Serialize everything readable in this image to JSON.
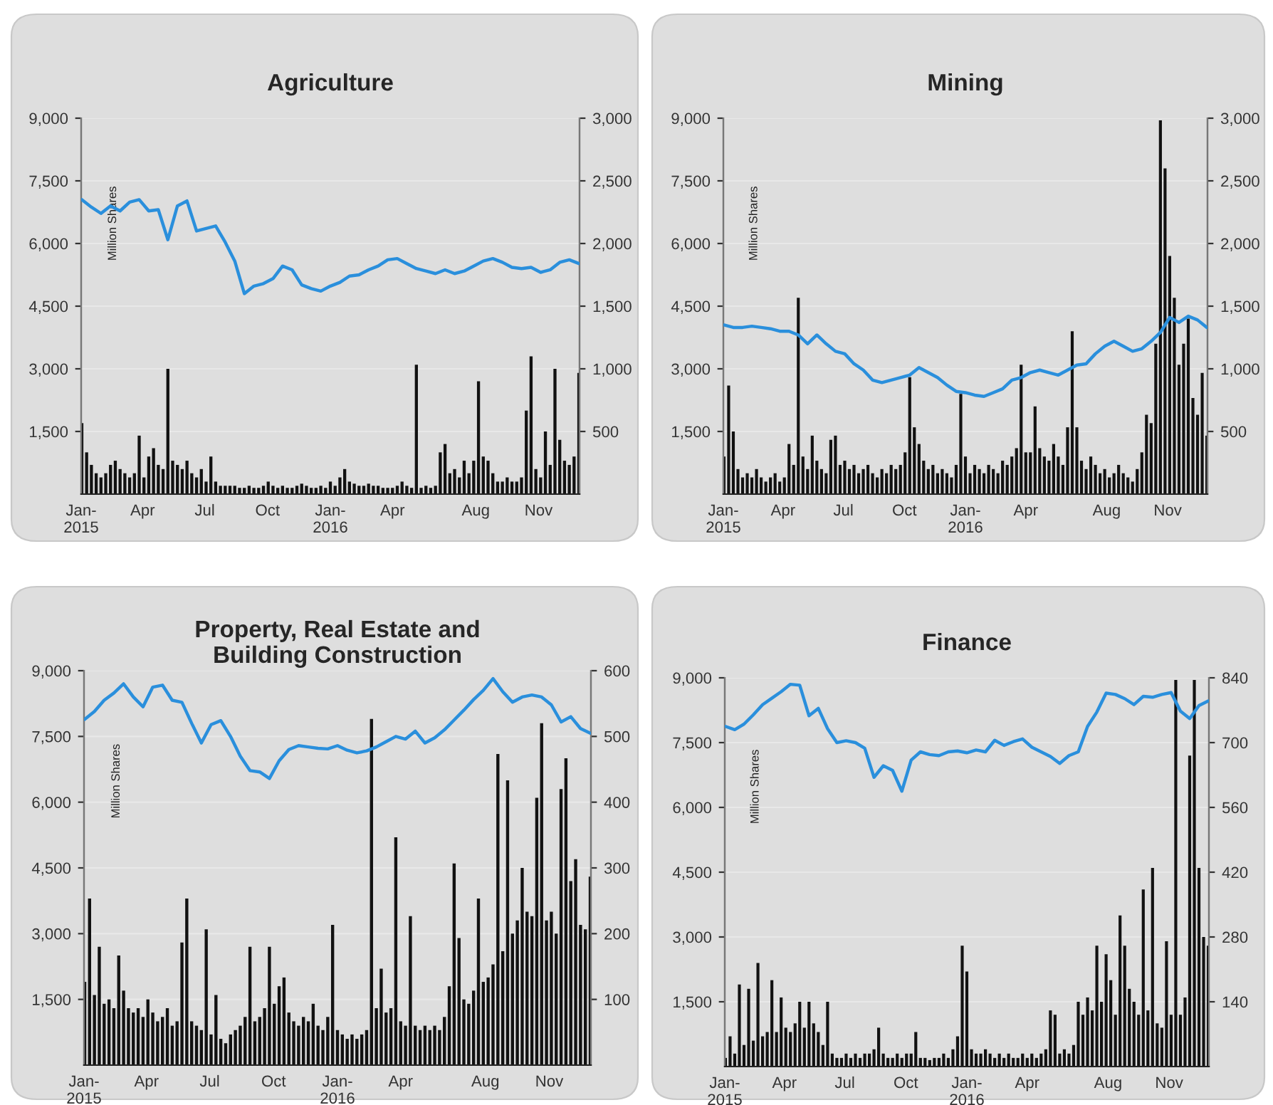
{
  "chart_data": [
    {
      "type": "bar",
      "title": "Agriculture",
      "ylabel": "Million Shares",
      "grid": "y",
      "xlim": [
        "2015-01-01",
        "2016-12-31"
      ],
      "xticks": [
        {
          "value": "2015-01-01",
          "label": "Jan-\n2015"
        },
        {
          "value": "2015-04-01",
          "label": "Apr"
        },
        {
          "value": "2015-07-01",
          "label": "Jul"
        },
        {
          "value": "2015-10-01",
          "label": "Oct"
        },
        {
          "value": "2016-01-01",
          "label": "Jan-\n2016"
        },
        {
          "value": "2016-04-01",
          "label": "Apr"
        },
        {
          "value": "2016-08-01",
          "label": "Aug"
        },
        {
          "value": "2016-11-01",
          "label": "Nov"
        }
      ],
      "ylim": [
        0,
        9000
      ],
      "yticks": [
        {
          "value": 1500,
          "label": "1,500"
        },
        {
          "value": 3000,
          "label": "3,000"
        },
        {
          "value": 4500,
          "label": "4,500"
        },
        {
          "value": 6000,
          "label": "6,000"
        },
        {
          "value": 7500,
          "label": "7,500"
        },
        {
          "value": 9000,
          "label": "9,000"
        }
      ],
      "y2lim": [
        0,
        3000
      ],
      "y2ticks": [
        500,
        {
          "value": 1000,
          "label": "1,000"
        },
        {
          "value": 1500,
          "label": "1,500"
        },
        {
          "value": 2000,
          "label": "2,000"
        },
        {
          "value": 2500,
          "label": "2,500"
        },
        {
          "value": 3000,
          "label": "3,000"
        }
      ],
      "x": [
        "2015-01-02",
        "2015-01-09",
        "2015-01-16",
        "2015-01-23",
        "2015-01-30",
        "2015-02-06",
        "2015-02-13",
        "2015-02-20",
        "2015-02-27",
        "2015-03-06",
        "2015-03-13",
        "2015-03-20",
        "2015-03-27",
        "2015-04-03",
        "2015-04-10",
        "2015-04-17",
        "2015-04-24",
        "2015-05-01",
        "2015-05-08",
        "2015-05-15",
        "2015-05-22",
        "2015-05-29",
        "2015-06-05",
        "2015-06-12",
        "2015-06-19",
        "2015-06-26",
        "2015-07-03",
        "2015-07-10",
        "2015-07-17",
        "2015-07-24",
        "2015-07-31",
        "2015-08-07",
        "2015-08-14",
        "2015-08-21",
        "2015-08-28",
        "2015-09-04",
        "2015-09-11",
        "2015-09-18",
        "2015-09-25",
        "2015-10-02",
        "2015-10-09",
        "2015-10-16",
        "2015-10-23",
        "2015-10-30",
        "2015-11-06",
        "2015-11-13",
        "2015-11-20",
        "2015-11-27",
        "2015-12-04",
        "2015-12-11",
        "2015-12-18",
        "2015-12-25",
        "2016-01-01",
        "2016-01-08",
        "2016-01-15",
        "2016-01-22",
        "2016-01-29",
        "2016-02-05",
        "2016-02-12",
        "2016-02-19",
        "2016-02-26",
        "2016-03-04",
        "2016-03-11",
        "2016-03-18",
        "2016-03-25",
        "2016-04-01",
        "2016-04-08",
        "2016-04-15",
        "2016-04-22",
        "2016-04-29",
        "2016-05-06",
        "2016-05-13",
        "2016-05-20",
        "2016-05-27",
        "2016-06-03",
        "2016-06-10",
        "2016-06-17",
        "2016-06-24",
        "2016-07-01",
        "2016-07-08",
        "2016-07-15",
        "2016-07-22",
        "2016-07-29",
        "2016-08-05",
        "2016-08-12",
        "2016-08-19",
        "2016-08-26",
        "2016-09-02",
        "2016-09-09",
        "2016-09-16",
        "2016-09-23",
        "2016-09-30",
        "2016-10-07",
        "2016-10-14",
        "2016-10-21",
        "2016-10-28",
        "2016-11-04",
        "2016-11-11",
        "2016-11-18",
        "2016-11-25",
        "2016-12-02",
        "2016-12-09",
        "2016-12-16",
        "2016-12-23",
        "2016-12-30"
      ],
      "series": [
        {
          "color": "#111111",
          "values": [
            1700,
            1000,
            700,
            500,
            400,
            500,
            700,
            800,
            600,
            500,
            400,
            500,
            1400,
            400,
            900,
            1100,
            700,
            600,
            3000,
            800,
            700,
            600,
            800,
            500,
            400,
            600,
            300,
            900,
            300,
            200,
            200,
            200,
            200,
            150,
            150,
            200,
            150,
            150,
            200,
            300,
            200,
            150,
            200,
            150,
            150,
            200,
            250,
            200,
            150,
            150,
            200,
            150,
            300,
            200,
            400,
            600,
            300,
            250,
            200,
            200,
            250,
            200,
            200,
            150,
            150,
            150,
            200,
            300,
            200,
            150,
            3100,
            150,
            200,
            150,
            200,
            1000,
            1200,
            500,
            600,
            400,
            800,
            500,
            800,
            2700,
            900,
            800,
            500,
            300,
            300,
            400,
            300,
            300,
            400,
            2000,
            3300,
            600,
            400,
            1500,
            700,
            3000,
            1300,
            800,
            700,
            900,
            2900
          ]
        },
        {
          "type": "line",
          "axis": "y2",
          "color": "#2a8fdc",
          "x": [
            "2015-01-02",
            "2015-01-16",
            "2015-01-30",
            "2015-02-13",
            "2015-02-27",
            "2015-03-13",
            "2015-03-27",
            "2015-04-10",
            "2015-04-24",
            "2015-05-08",
            "2015-05-22",
            "2015-06-05",
            "2015-06-19",
            "2015-07-03",
            "2015-07-17",
            "2015-07-31",
            "2015-08-14",
            "2015-08-28",
            "2015-09-11",
            "2015-09-25",
            "2015-10-09",
            "2015-10-23",
            "2015-11-06",
            "2015-11-20",
            "2015-12-04",
            "2015-12-18",
            "2016-01-01",
            "2016-01-15",
            "2016-01-29",
            "2016-02-12",
            "2016-02-26",
            "2016-03-11",
            "2016-03-25",
            "2016-04-08",
            "2016-04-22",
            "2016-05-06",
            "2016-05-20",
            "2016-06-03",
            "2016-06-17",
            "2016-07-01",
            "2016-07-15",
            "2016-07-29",
            "2016-08-12",
            "2016-08-26",
            "2016-09-09",
            "2016-09-23",
            "2016-10-07",
            "2016-10-21",
            "2016-11-04",
            "2016-11-18",
            "2016-12-02",
            "2016-12-16",
            "2016-12-30"
          ],
          "values": [
            2350,
            2290,
            2240,
            2300,
            2260,
            2330,
            2350,
            2260,
            2270,
            2030,
            2300,
            2340,
            2100,
            2120,
            2140,
            2010,
            1860,
            1600,
            1660,
            1680,
            1720,
            1820,
            1790,
            1670,
            1640,
            1620,
            1660,
            1690,
            1740,
            1750,
            1790,
            1820,
            1870,
            1880,
            1840,
            1800,
            1780,
            1760,
            1790,
            1760,
            1780,
            1820,
            1860,
            1880,
            1850,
            1810,
            1800,
            1810,
            1770,
            1790,
            1850,
            1870,
            1840
          ]
        }
      ]
    },
    {
      "type": "bar",
      "title": "Mining",
      "ylabel": "Million Shares",
      "grid": "y",
      "xlim": [
        "2015-01-01",
        "2016-12-31"
      ],
      "xticks": [
        {
          "value": "2015-01-01",
          "label": "Jan-\n2015"
        },
        {
          "value": "2015-04-01",
          "label": "Apr"
        },
        {
          "value": "2015-07-01",
          "label": "Jul"
        },
        {
          "value": "2015-10-01",
          "label": "Oct"
        },
        {
          "value": "2016-01-01",
          "label": "Jan-\n2016"
        },
        {
          "value": "2016-04-01",
          "label": "Apr"
        },
        {
          "value": "2016-08-01",
          "label": "Aug"
        },
        {
          "value": "2016-11-01",
          "label": "Nov"
        }
      ],
      "ylim": [
        0,
        9000
      ],
      "yticks": [
        {
          "value": 1500,
          "label": "1,500"
        },
        {
          "value": 3000,
          "label": "3,000"
        },
        {
          "value": 4500,
          "label": "4,500"
        },
        {
          "value": 6000,
          "label": "6,000"
        },
        {
          "value": 7500,
          "label": "7,500"
        },
        {
          "value": 9000,
          "label": "9,000"
        }
      ],
      "y2lim": [
        0,
        3000
      ],
      "y2ticks": [
        500,
        {
          "value": 1000,
          "label": "1,000"
        },
        {
          "value": 1500,
          "label": "1,500"
        },
        {
          "value": 2000,
          "label": "2,000"
        },
        {
          "value": 2500,
          "label": "2,500"
        },
        {
          "value": 3000,
          "label": "3,000"
        }
      ],
      "x": [
        "2015-01-02",
        "2015-01-09",
        "2015-01-16",
        "2015-01-23",
        "2015-01-30",
        "2015-02-06",
        "2015-02-13",
        "2015-02-20",
        "2015-02-27",
        "2015-03-06",
        "2015-03-13",
        "2015-03-20",
        "2015-03-27",
        "2015-04-03",
        "2015-04-10",
        "2015-04-17",
        "2015-04-24",
        "2015-05-01",
        "2015-05-08",
        "2015-05-15",
        "2015-05-22",
        "2015-05-29",
        "2015-06-05",
        "2015-06-12",
        "2015-06-19",
        "2015-06-26",
        "2015-07-03",
        "2015-07-10",
        "2015-07-17",
        "2015-07-24",
        "2015-07-31",
        "2015-08-07",
        "2015-08-14",
        "2015-08-21",
        "2015-08-28",
        "2015-09-04",
        "2015-09-11",
        "2015-09-18",
        "2015-09-25",
        "2015-10-02",
        "2015-10-09",
        "2015-10-16",
        "2015-10-23",
        "2015-10-30",
        "2015-11-06",
        "2015-11-13",
        "2015-11-20",
        "2015-11-27",
        "2015-12-04",
        "2015-12-11",
        "2015-12-18",
        "2015-12-25",
        "2016-01-01",
        "2016-01-08",
        "2016-01-15",
        "2016-01-22",
        "2016-01-29",
        "2016-02-05",
        "2016-02-12",
        "2016-02-19",
        "2016-02-26",
        "2016-03-04",
        "2016-03-11",
        "2016-03-18",
        "2016-03-25",
        "2016-04-01",
        "2016-04-08",
        "2016-04-15",
        "2016-04-22",
        "2016-04-29",
        "2016-05-06",
        "2016-05-13",
        "2016-05-20",
        "2016-05-27",
        "2016-06-03",
        "2016-06-10",
        "2016-06-17",
        "2016-06-24",
        "2016-07-01",
        "2016-07-08",
        "2016-07-15",
        "2016-07-22",
        "2016-07-29",
        "2016-08-05",
        "2016-08-12",
        "2016-08-19",
        "2016-08-26",
        "2016-09-02",
        "2016-09-09",
        "2016-09-16",
        "2016-09-23",
        "2016-09-30",
        "2016-10-07",
        "2016-10-14",
        "2016-10-21",
        "2016-10-28",
        "2016-11-04",
        "2016-11-11",
        "2016-11-18",
        "2016-11-25",
        "2016-12-02",
        "2016-12-09",
        "2016-12-16",
        "2016-12-23",
        "2016-12-30"
      ],
      "series": [
        {
          "color": "#111111",
          "values": [
            900,
            2600,
            1500,
            600,
            400,
            500,
            400,
            600,
            400,
            300,
            400,
            500,
            300,
            400,
            1200,
            700,
            4700,
            900,
            600,
            1400,
            800,
            600,
            500,
            1300,
            1400,
            700,
            800,
            600,
            700,
            500,
            600,
            700,
            500,
            400,
            600,
            500,
            700,
            600,
            700,
            1000,
            2800,
            1600,
            1200,
            800,
            600,
            700,
            500,
            600,
            500,
            400,
            700,
            2400,
            900,
            500,
            700,
            600,
            500,
            700,
            600,
            500,
            800,
            700,
            900,
            1100,
            3100,
            1000,
            1000,
            2100,
            1100,
            900,
            800,
            1200,
            900,
            700,
            1600,
            3900,
            1600,
            800,
            600,
            900,
            700,
            500,
            600,
            400,
            500,
            700,
            500,
            400,
            300,
            600,
            1000,
            1900,
            1700,
            3600,
            8950,
            7800,
            5700,
            4700,
            3100,
            3600,
            4200,
            2300,
            1900,
            2900,
            1400
          ]
        },
        {
          "type": "line",
          "axis": "y2",
          "color": "#2a8fdc",
          "x": [
            "2015-01-02",
            "2015-01-16",
            "2015-01-30",
            "2015-02-13",
            "2015-02-27",
            "2015-03-13",
            "2015-03-27",
            "2015-04-10",
            "2015-04-24",
            "2015-05-08",
            "2015-05-22",
            "2015-06-05",
            "2015-06-19",
            "2015-07-03",
            "2015-07-17",
            "2015-07-31",
            "2015-08-14",
            "2015-08-28",
            "2015-09-11",
            "2015-09-25",
            "2015-10-09",
            "2015-10-23",
            "2015-11-06",
            "2015-11-20",
            "2015-12-04",
            "2015-12-18",
            "2016-01-01",
            "2016-01-15",
            "2016-01-29",
            "2016-02-12",
            "2016-02-26",
            "2016-03-11",
            "2016-03-25",
            "2016-04-08",
            "2016-04-22",
            "2016-05-06",
            "2016-05-20",
            "2016-06-03",
            "2016-06-17",
            "2016-07-01",
            "2016-07-15",
            "2016-07-29",
            "2016-08-12",
            "2016-08-26",
            "2016-09-09",
            "2016-09-23",
            "2016-10-07",
            "2016-10-21",
            "2016-11-04",
            "2016-11-18",
            "2016-12-02",
            "2016-12-16",
            "2016-12-30"
          ],
          "values": [
            1350,
            1330,
            1330,
            1340,
            1330,
            1320,
            1300,
            1300,
            1270,
            1200,
            1270,
            1200,
            1140,
            1120,
            1040,
            990,
            910,
            890,
            910,
            930,
            950,
            1010,
            970,
            930,
            870,
            820,
            810,
            790,
            780,
            810,
            840,
            910,
            930,
            970,
            990,
            970,
            950,
            990,
            1030,
            1040,
            1120,
            1180,
            1220,
            1180,
            1140,
            1160,
            1220,
            1290,
            1410,
            1370,
            1420,
            1390,
            1330
          ]
        }
      ]
    },
    {
      "type": "bar",
      "title": "Property, Real Estate and\nBuilding Construction",
      "ylabel": "Million Shares",
      "grid": "y",
      "xlim": [
        "2015-01-01",
        "2016-12-31"
      ],
      "xticks": [
        {
          "value": "2015-01-01",
          "label": "Jan-\n2015"
        },
        {
          "value": "2015-04-01",
          "label": "Apr"
        },
        {
          "value": "2015-07-01",
          "label": "Jul"
        },
        {
          "value": "2015-10-01",
          "label": "Oct"
        },
        {
          "value": "2016-01-01",
          "label": "Jan-\n2016"
        },
        {
          "value": "2016-04-01",
          "label": "Apr"
        },
        {
          "value": "2016-08-01",
          "label": "Aug"
        },
        {
          "value": "2016-11-01",
          "label": "Nov"
        }
      ],
      "ylim": [
        0,
        9000
      ],
      "yticks": [
        {
          "value": 1500,
          "label": "1,500"
        },
        {
          "value": 3000,
          "label": "3,000"
        },
        {
          "value": 4500,
          "label": "4,500"
        },
        {
          "value": 6000,
          "label": "6,000"
        },
        {
          "value": 7500,
          "label": "7,500"
        },
        {
          "value": 9000,
          "label": "9,000"
        }
      ],
      "y2lim": [
        0,
        600
      ],
      "y2ticks": [
        100,
        200,
        300,
        400,
        500,
        600
      ],
      "x": [
        "2015-01-02",
        "2015-01-09",
        "2015-01-16",
        "2015-01-23",
        "2015-01-30",
        "2015-02-06",
        "2015-02-13",
        "2015-02-20",
        "2015-02-27",
        "2015-03-06",
        "2015-03-13",
        "2015-03-20",
        "2015-03-27",
        "2015-04-03",
        "2015-04-10",
        "2015-04-17",
        "2015-04-24",
        "2015-05-01",
        "2015-05-08",
        "2015-05-15",
        "2015-05-22",
        "2015-05-29",
        "2015-06-05",
        "2015-06-12",
        "2015-06-19",
        "2015-06-26",
        "2015-07-03",
        "2015-07-10",
        "2015-07-17",
        "2015-07-24",
        "2015-07-31",
        "2015-08-07",
        "2015-08-14",
        "2015-08-21",
        "2015-08-28",
        "2015-09-04",
        "2015-09-11",
        "2015-09-18",
        "2015-09-25",
        "2015-10-02",
        "2015-10-09",
        "2015-10-16",
        "2015-10-23",
        "2015-10-30",
        "2015-11-06",
        "2015-11-13",
        "2015-11-20",
        "2015-11-27",
        "2015-12-04",
        "2015-12-11",
        "2015-12-18",
        "2015-12-25",
        "2016-01-01",
        "2016-01-08",
        "2016-01-15",
        "2016-01-22",
        "2016-01-29",
        "2016-02-05",
        "2016-02-12",
        "2016-02-19",
        "2016-02-26",
        "2016-03-04",
        "2016-03-11",
        "2016-03-18",
        "2016-03-25",
        "2016-04-01",
        "2016-04-08",
        "2016-04-15",
        "2016-04-22",
        "2016-04-29",
        "2016-05-06",
        "2016-05-13",
        "2016-05-20",
        "2016-05-27",
        "2016-06-03",
        "2016-06-10",
        "2016-06-17",
        "2016-06-24",
        "2016-07-01",
        "2016-07-08",
        "2016-07-15",
        "2016-07-22",
        "2016-07-29",
        "2016-08-05",
        "2016-08-12",
        "2016-08-19",
        "2016-08-26",
        "2016-09-02",
        "2016-09-09",
        "2016-09-16",
        "2016-09-23",
        "2016-09-30",
        "2016-10-07",
        "2016-10-14",
        "2016-10-21",
        "2016-10-28",
        "2016-11-04",
        "2016-11-11",
        "2016-11-18",
        "2016-11-25",
        "2016-12-02",
        "2016-12-09",
        "2016-12-16",
        "2016-12-23",
        "2016-12-30"
      ],
      "series": [
        {
          "color": "#111111",
          "values": [
            1900,
            3800,
            1600,
            2700,
            1400,
            1500,
            1300,
            2500,
            1700,
            1300,
            1200,
            1300,
            1100,
            1500,
            1200,
            1000,
            1100,
            1300,
            900,
            1000,
            2800,
            3800,
            1000,
            900,
            800,
            3100,
            700,
            1600,
            600,
            500,
            700,
            800,
            900,
            1100,
            2700,
            1000,
            1100,
            1300,
            2700,
            1400,
            1800,
            2000,
            1200,
            1000,
            900,
            1100,
            1000,
            1400,
            900,
            800,
            1100,
            3200,
            800,
            700,
            600,
            700,
            600,
            700,
            800,
            7900,
            1300,
            2200,
            1200,
            1300,
            5200,
            1000,
            900,
            3400,
            900,
            800,
            900,
            800,
            900,
            800,
            1100,
            1800,
            4600,
            2900,
            1500,
            1400,
            1700,
            3800,
            1900,
            2000,
            2300,
            7100,
            2600,
            6500,
            3000,
            3300,
            4500,
            3500,
            3400,
            6100,
            7800,
            3300,
            3500,
            3000,
            6300,
            7000,
            4200,
            4700,
            3200,
            3100,
            4300
          ]
        },
        {
          "type": "line",
          "axis": "y2",
          "color": "#2a8fdc",
          "x": [
            "2015-01-02",
            "2015-01-16",
            "2015-01-30",
            "2015-02-13",
            "2015-02-27",
            "2015-03-13",
            "2015-03-27",
            "2015-04-10",
            "2015-04-24",
            "2015-05-08",
            "2015-05-22",
            "2015-06-05",
            "2015-06-19",
            "2015-07-03",
            "2015-07-17",
            "2015-07-31",
            "2015-08-14",
            "2015-08-28",
            "2015-09-11",
            "2015-09-25",
            "2015-10-09",
            "2015-10-23",
            "2015-11-06",
            "2015-11-20",
            "2015-12-04",
            "2015-12-18",
            "2016-01-01",
            "2016-01-15",
            "2016-01-29",
            "2016-02-12",
            "2016-02-26",
            "2016-03-11",
            "2016-03-25",
            "2016-04-08",
            "2016-04-22",
            "2016-05-06",
            "2016-05-20",
            "2016-06-03",
            "2016-06-17",
            "2016-07-01",
            "2016-07-15",
            "2016-07-29",
            "2016-08-12",
            "2016-08-26",
            "2016-09-09",
            "2016-09-23",
            "2016-10-07",
            "2016-10-21",
            "2016-11-04",
            "2016-11-18",
            "2016-12-02",
            "2016-12-16",
            "2016-12-30"
          ],
          "values": [
            526,
            538,
            555,
            566,
            580,
            560,
            545,
            575,
            578,
            555,
            552,
            520,
            490,
            518,
            524,
            500,
            470,
            448,
            446,
            436,
            463,
            480,
            486,
            484,
            482,
            481,
            486,
            479,
            475,
            478,
            484,
            492,
            500,
            496,
            508,
            490,
            498,
            510,
            525,
            540,
            556,
            570,
            588,
            568,
            552,
            560,
            563,
            560,
            548,
            522,
            530,
            512,
            505
          ]
        }
      ]
    },
    {
      "type": "bar",
      "title": "Finance",
      "ylabel": "Million Shares",
      "grid": "y",
      "xlim": [
        "2015-01-01",
        "2016-12-31"
      ],
      "xticks": [
        {
          "value": "2015-01-01",
          "label": "Jan-\n2015"
        },
        {
          "value": "2015-04-01",
          "label": "Apr"
        },
        {
          "value": "2015-07-01",
          "label": "Jul"
        },
        {
          "value": "2015-10-01",
          "label": "Oct"
        },
        {
          "value": "2016-01-01",
          "label": "Jan-\n2016"
        },
        {
          "value": "2016-04-01",
          "label": "Apr"
        },
        {
          "value": "2016-08-01",
          "label": "Aug"
        },
        {
          "value": "2016-11-01",
          "label": "Nov"
        }
      ],
      "ylim": [
        0,
        9000
      ],
      "yticks": [
        {
          "value": 1500,
          "label": "1,500"
        },
        {
          "value": 3000,
          "label": "3,000"
        },
        {
          "value": 4500,
          "label": "4,500"
        },
        {
          "value": 6000,
          "label": "6,000"
        },
        {
          "value": 7500,
          "label": "7,500"
        },
        {
          "value": 9000,
          "label": "9,000"
        }
      ],
      "y2lim": [
        0,
        840
      ],
      "y2ticks": [
        140,
        280,
        420,
        560,
        700,
        840
      ],
      "x": [
        "2015-01-02",
        "2015-01-09",
        "2015-01-16",
        "2015-01-23",
        "2015-01-30",
        "2015-02-06",
        "2015-02-13",
        "2015-02-20",
        "2015-02-27",
        "2015-03-06",
        "2015-03-13",
        "2015-03-20",
        "2015-03-27",
        "2015-04-03",
        "2015-04-10",
        "2015-04-17",
        "2015-04-24",
        "2015-05-01",
        "2015-05-08",
        "2015-05-15",
        "2015-05-22",
        "2015-05-29",
        "2015-06-05",
        "2015-06-12",
        "2015-06-19",
        "2015-06-26",
        "2015-07-03",
        "2015-07-10",
        "2015-07-17",
        "2015-07-24",
        "2015-07-31",
        "2015-08-07",
        "2015-08-14",
        "2015-08-21",
        "2015-08-28",
        "2015-09-04",
        "2015-09-11",
        "2015-09-18",
        "2015-09-25",
        "2015-10-02",
        "2015-10-09",
        "2015-10-16",
        "2015-10-23",
        "2015-10-30",
        "2015-11-06",
        "2015-11-13",
        "2015-11-20",
        "2015-11-27",
        "2015-12-04",
        "2015-12-11",
        "2015-12-18",
        "2015-12-25",
        "2016-01-01",
        "2016-01-08",
        "2016-01-15",
        "2016-01-22",
        "2016-01-29",
        "2016-02-05",
        "2016-02-12",
        "2016-02-19",
        "2016-02-26",
        "2016-03-04",
        "2016-03-11",
        "2016-03-18",
        "2016-03-25",
        "2016-04-01",
        "2016-04-08",
        "2016-04-15",
        "2016-04-22",
        "2016-04-29",
        "2016-05-06",
        "2016-05-13",
        "2016-05-20",
        "2016-05-27",
        "2016-06-03",
        "2016-06-10",
        "2016-06-17",
        "2016-06-24",
        "2016-07-01",
        "2016-07-08",
        "2016-07-15",
        "2016-07-22",
        "2016-07-29",
        "2016-08-05",
        "2016-08-12",
        "2016-08-19",
        "2016-08-26",
        "2016-09-02",
        "2016-09-09",
        "2016-09-16",
        "2016-09-23",
        "2016-09-30",
        "2016-10-07",
        "2016-10-14",
        "2016-10-21",
        "2016-10-28",
        "2016-11-04",
        "2016-11-11",
        "2016-11-18",
        "2016-11-25",
        "2016-12-02",
        "2016-12-09",
        "2016-12-16",
        "2016-12-23",
        "2016-12-30"
      ],
      "series": [
        {
          "color": "#111111",
          "values": [
            200,
            700,
            300,
            1900,
            500,
            1800,
            600,
            2400,
            700,
            800,
            2000,
            800,
            1600,
            900,
            800,
            1000,
            1500,
            900,
            1500,
            1000,
            800,
            500,
            1500,
            300,
            200,
            200,
            300,
            200,
            300,
            200,
            300,
            300,
            400,
            900,
            300,
            200,
            200,
            300,
            200,
            300,
            300,
            800,
            200,
            200,
            150,
            200,
            200,
            300,
            200,
            400,
            700,
            2800,
            2200,
            400,
            300,
            300,
            400,
            300,
            200,
            300,
            200,
            300,
            200,
            200,
            300,
            200,
            300,
            200,
            300,
            400,
            1300,
            1200,
            300,
            400,
            300,
            500,
            1500,
            1200,
            1600,
            1300,
            2800,
            1500,
            2600,
            2000,
            1200,
            3500,
            2800,
            1800,
            1500,
            1200,
            4100,
            1300,
            4600,
            1000,
            900,
            2900,
            1200,
            8950,
            1200,
            1600,
            7200,
            8950,
            4600,
            3000,
            2800
          ]
        },
        {
          "type": "line",
          "axis": "y2",
          "color": "#2a8fdc",
          "x": [
            "2015-01-02",
            "2015-01-16",
            "2015-01-30",
            "2015-02-13",
            "2015-02-27",
            "2015-03-13",
            "2015-03-27",
            "2015-04-10",
            "2015-04-24",
            "2015-05-08",
            "2015-05-22",
            "2015-06-05",
            "2015-06-19",
            "2015-07-03",
            "2015-07-17",
            "2015-07-31",
            "2015-08-14",
            "2015-08-28",
            "2015-09-11",
            "2015-09-25",
            "2015-10-09",
            "2015-10-23",
            "2015-11-06",
            "2015-11-20",
            "2015-12-04",
            "2015-12-18",
            "2016-01-01",
            "2016-01-15",
            "2016-01-29",
            "2016-02-12",
            "2016-02-26",
            "2016-03-11",
            "2016-03-25",
            "2016-04-08",
            "2016-04-22",
            "2016-05-06",
            "2016-05-20",
            "2016-06-03",
            "2016-06-17",
            "2016-07-01",
            "2016-07-15",
            "2016-07-29",
            "2016-08-12",
            "2016-08-26",
            "2016-09-09",
            "2016-09-23",
            "2016-10-07",
            "2016-10-21",
            "2016-11-04",
            "2016-11-18",
            "2016-12-02",
            "2016-12-16",
            "2016-12-30"
          ],
          "values": [
            735,
            728,
            740,
            760,
            782,
            796,
            810,
            826,
            824,
            758,
            774,
            730,
            700,
            704,
            700,
            688,
            625,
            650,
            640,
            595,
            662,
            680,
            674,
            672,
            680,
            682,
            678,
            684,
            680,
            705,
            694,
            702,
            708,
            690,
            680,
            670,
            655,
            672,
            680,
            735,
            766,
            807,
            804,
            795,
            782,
            800,
            798,
            804,
            808,
            768,
            752,
            780,
            790
          ]
        }
      ]
    }
  ]
}
